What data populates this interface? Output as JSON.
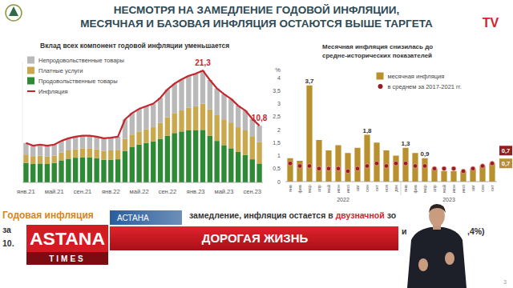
{
  "slide": {
    "title": [
      "НЕСМОТРЯ НА ЗАМЕДЛЕНИЕ ГОДОВОЙ ИНФЛЯЦИИ,",
      "МЕСЯЧНАЯ И БАЗОВАЯ ИНФЛЯЦИЯ ОСТАЮТСЯ ВЫШЕ ТАРГЕТА"
    ],
    "page_number": "3"
  },
  "chart_data": [
    {
      "type": "bar",
      "stacked": true,
      "title": "Вклад всех компонент годовой инфляции уменьшается",
      "categories": [
        "янв.21",
        null,
        null,
        null,
        "май.21",
        null,
        null,
        null,
        "сен.21",
        null,
        null,
        null,
        "янв.22",
        null,
        null,
        null,
        "май.22",
        null,
        null,
        null,
        "сен.22",
        null,
        null,
        null,
        "янв.23",
        null,
        null,
        null,
        "май.23",
        null,
        null,
        null,
        "сен.23",
        null
      ],
      "series": [
        {
          "name": "Непродовольственные товары",
          "color": "#b9b9b9",
          "values": [
            2.2,
            2.0,
            2.1,
            2.1,
            2.1,
            2.2,
            2.3,
            2.4,
            2.4,
            2.4,
            2.4,
            2.4,
            2.4,
            2.5,
            3.7,
            4.1,
            4.3,
            4.4,
            4.5,
            4.8,
            5.3,
            5.6,
            5.9,
            6.1,
            6.2,
            6.3,
            5.6,
            5.1,
            4.8,
            4.5,
            4.1,
            3.8,
            3.3,
            3.1
          ]
        },
        {
          "name": "Платные услуги",
          "color": "#c9a84e",
          "values": [
            1.6,
            1.5,
            1.5,
            1.4,
            1.4,
            1.5,
            1.6,
            1.6,
            1.7,
            1.7,
            1.7,
            1.7,
            1.8,
            1.8,
            2.3,
            2.4,
            2.5,
            2.6,
            2.7,
            3.0,
            3.5,
            3.8,
            4.0,
            4.3,
            4.6,
            5.0,
            5.0,
            4.9,
            4.9,
            4.9,
            4.7,
            4.7,
            4.4,
            4.1
          ]
        },
        {
          "name": "Продовольственные товары",
          "color": "#2e8a34",
          "values": [
            3.7,
            3.5,
            3.6,
            3.5,
            3.7,
            4.2,
            4.5,
            4.7,
            4.8,
            4.8,
            4.6,
            4.3,
            4.3,
            4.4,
            6.0,
            6.7,
            7.2,
            7.5,
            7.8,
            8.3,
            8.9,
            9.4,
            9.7,
            9.9,
            9.9,
            10.0,
            8.9,
            7.9,
            7.1,
            6.5,
            5.8,
            5.2,
            4.4,
            3.6
          ]
        },
        {
          "name": "Инфляция",
          "type": "line",
          "color": "#c4262e",
          "values": [
            7.5,
            7.0,
            7.2,
            7.0,
            7.2,
            7.9,
            8.4,
            8.7,
            8.9,
            8.9,
            8.7,
            8.4,
            8.5,
            8.7,
            12.0,
            13.2,
            14.0,
            14.5,
            15.0,
            16.1,
            17.7,
            18.8,
            19.6,
            20.3,
            20.7,
            21.3,
            19.5,
            17.9,
            16.8,
            15.9,
            14.6,
            13.7,
            12.1,
            10.8
          ],
          "value_labels": [
            null,
            null,
            null,
            null,
            null,
            null,
            null,
            null,
            null,
            null,
            null,
            null,
            null,
            null,
            null,
            null,
            null,
            null,
            null,
            null,
            null,
            null,
            null,
            null,
            null,
            "21,3",
            null,
            null,
            null,
            null,
            null,
            null,
            null,
            "10,8"
          ]
        }
      ],
      "ylim": [
        0,
        23
      ],
      "tick_labels": "x",
      "legend": "top-left"
    },
    {
      "type": "bar",
      "title": [
        "Месячная инфляция снизилась до",
        "средне-исторических показателей"
      ],
      "y_label": "%",
      "categories": [
        "янв",
        "фев",
        "мар",
        "апр",
        "май",
        "июн",
        "июл",
        "авг",
        "сен",
        "окт",
        "ноя",
        "дек",
        "янв",
        "фев",
        "мар",
        "апр",
        "май",
        "июн",
        "июл",
        "авг",
        "сен",
        "окт"
      ],
      "category_groups": [
        "2022",
        "2022",
        "2022",
        "2022",
        "2022",
        "2022",
        "2022",
        "2022",
        "2022",
        "2022",
        "2022",
        "2022",
        "2023",
        "2023",
        "2023",
        "2023",
        "2023",
        "2023",
        "2023",
        "2023",
        "2023",
        "2023"
      ],
      "series": [
        {
          "name": "месячная инфляция",
          "color": "#b8912e",
          "values": [
            0.9,
            0.8,
            3.7,
            1.6,
            1.2,
            1.4,
            1.1,
            1.3,
            1.8,
            1.5,
            1.2,
            1.0,
            1.3,
            1.1,
            0.9,
            0.5,
            0.4,
            0.4,
            0.4,
            0.5,
            0.6,
            0.7
          ],
          "value_labels": [
            null,
            null,
            "3,7",
            null,
            null,
            null,
            null,
            null,
            "1,8",
            null,
            null,
            null,
            "1,3",
            null,
            "0,9",
            null,
            null,
            null,
            null,
            null,
            null,
            "0,7"
          ]
        },
        {
          "name": "в среднем за 2017-2021 гг.",
          "type": "scatter",
          "marker": "circle",
          "color": "#9a1c1f",
          "values": [
            0.7,
            0.6,
            0.6,
            0.5,
            0.5,
            0.5,
            0.4,
            0.5,
            0.6,
            0.7,
            0.6,
            0.7,
            0.7,
            0.6,
            0.6,
            0.5,
            0.5,
            0.5,
            0.4,
            0.5,
            0.6,
            0.7
          ],
          "value_labels": [
            null,
            null,
            null,
            null,
            null,
            null,
            null,
            null,
            null,
            null,
            null,
            null,
            null,
            null,
            null,
            null,
            null,
            null,
            null,
            null,
            null,
            "0,7"
          ]
        }
      ],
      "ylim": [
        0,
        4
      ],
      "yticks": [
        0,
        {
          "value": 0.5,
          "label": "0,5"
        },
        1,
        {
          "value": 1.5,
          "label": "1,5"
        },
        2,
        {
          "value": 2.5,
          "label": "2,5"
        },
        3,
        {
          "value": 3.5,
          "label": "3,5"
        },
        4
      ],
      "legend": "top-right"
    }
  ],
  "footer": {
    "lines": [
      [
        "Годовая инфляция",
        "замедление, инфляция остается в",
        "двузначной",
        "зо"
      ],
      [
        "за",
        "и",
        ",4%)"
      ],
      [
        "10."
      ]
    ]
  },
  "overlays": {
    "channel_logo": "TV",
    "location": "АСТАНА",
    "brand": [
      "ASTANA",
      "TIMES"
    ],
    "headline": "ДОРОГАЯ ЖИЗНЬ"
  }
}
